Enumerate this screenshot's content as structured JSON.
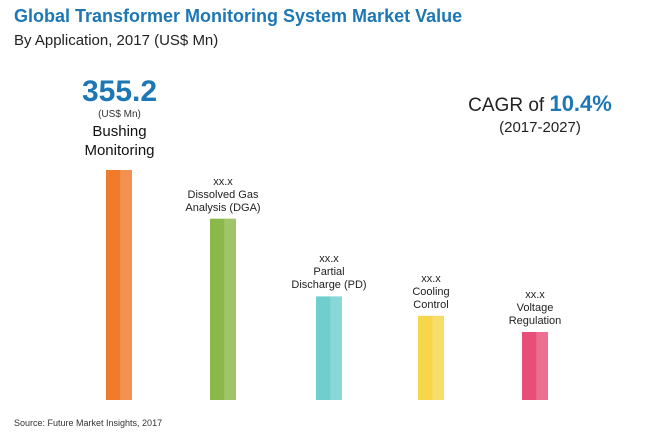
{
  "header": {
    "title": "Global Transformer Monitoring System Market Value",
    "subtitle": "By Application, 2017 (US$ Mn)"
  },
  "highlight": {
    "value": "355.2",
    "unit": "(US$ Mn)",
    "label_line1": "Bushing",
    "label_line2": "Monitoring"
  },
  "cagr": {
    "prefix": "CAGR of",
    "value": "10.4%",
    "period": "(2017-2027)"
  },
  "source": "Source: Future Market Insights, 2017",
  "chart_data": {
    "type": "bar",
    "categories": [
      "Bushing Monitoring",
      "Dissolved Gas Analysis (DGA)",
      "Partial Discharge (PD)",
      "Cooling Control",
      "Voltage Regulation"
    ],
    "label_lines": [
      [],
      [
        "xx.x",
        "Dissolved Gas",
        "Analysis (DGA)"
      ],
      [
        "xx.x",
        "Partial",
        "Discharge (PD)"
      ],
      [
        "xx.x",
        "Cooling",
        "Control"
      ],
      [
        "xx.x",
        "Voltage",
        "Regulation"
      ]
    ],
    "values": [
      355.2,
      280,
      160,
      130,
      105
    ],
    "colors": [
      "#f07b2a",
      "#8bb84a",
      "#6fcfcf",
      "#f6d64a",
      "#e84f78"
    ]
  }
}
